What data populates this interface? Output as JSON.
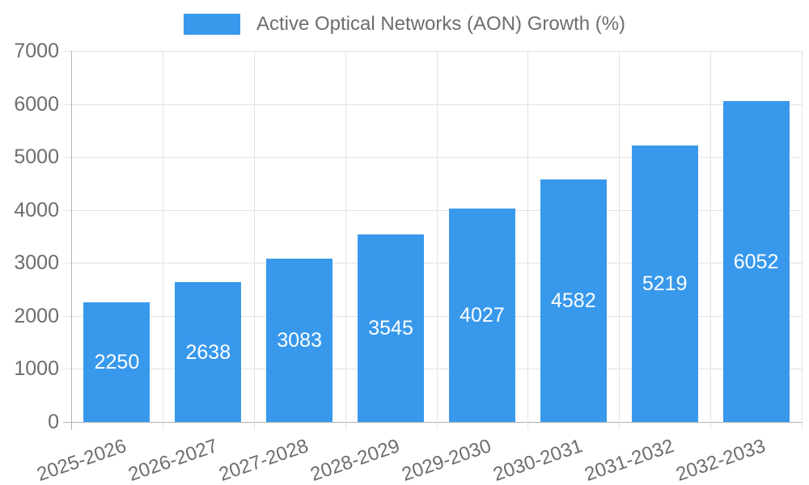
{
  "chart_data": {
    "type": "bar",
    "title": "",
    "legend": "Active Optical Networks (AON) Growth (%)",
    "legend_position": "top",
    "categories": [
      "2025-2026",
      "2026-2027",
      "2027-2028",
      "2028-2029",
      "2029-2030",
      "2030-2031",
      "2031-2032",
      "2032-2033"
    ],
    "values": [
      2250,
      2638,
      3083,
      3545,
      4027,
      4582,
      5219,
      6052
    ],
    "xlabel": "",
    "ylabel": "",
    "ylim": [
      0,
      7000
    ],
    "yticks": [
      0,
      1000,
      2000,
      3000,
      4000,
      5000,
      6000,
      7000
    ],
    "grid": true,
    "value_labels_position": "inside-center",
    "colors": {
      "bar": "#3899ec",
      "value_label": "#ffffff",
      "tick_text": "#6d6d6d",
      "legend_text": "#6d6d6d",
      "gridline": "#e3e3e3",
      "axis_line": "#b1b1b1",
      "background": "#ffffff"
    }
  }
}
